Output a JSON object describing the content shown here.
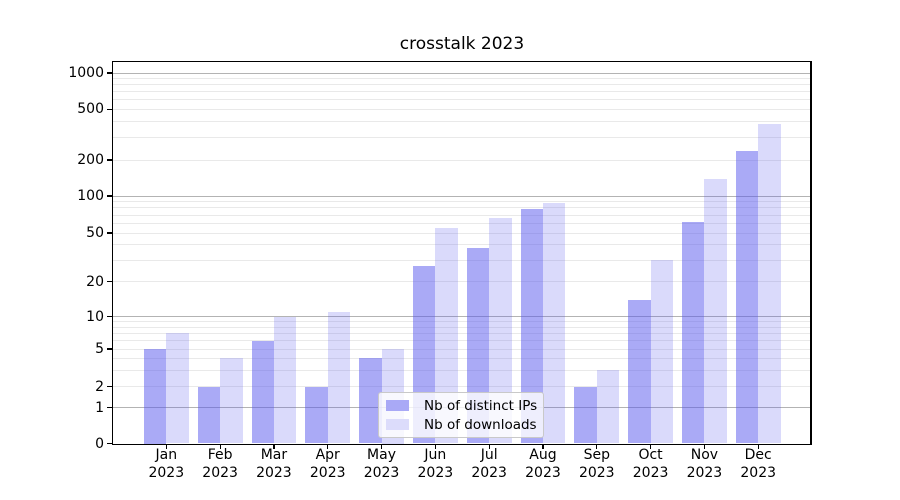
{
  "chart_data": {
    "type": "bar",
    "title": "crosstalk 2023",
    "categories": [
      "Jan 2023",
      "Feb 2023",
      "Mar 2023",
      "Apr 2023",
      "May 2023",
      "Jun 2023",
      "Jul 2023",
      "Aug 2023",
      "Sep 2023",
      "Oct 2023",
      "Nov 2023",
      "Dec 2023"
    ],
    "series": [
      {
        "name": "Nb of distinct IPs",
        "color": "#a9a9f6",
        "values": [
          5,
          2,
          6,
          2,
          4,
          27,
          38,
          78,
          2,
          14,
          62,
          235
        ]
      },
      {
        "name": "Nb of downloads",
        "color": "#dcdcfb",
        "values": [
          7,
          4,
          10,
          11,
          5,
          55,
          66,
          88,
          3,
          30,
          140,
          380
        ]
      }
    ],
    "xlabel": "",
    "ylabel": "",
    "yscale": "symlog",
    "yticks": [
      0,
      1,
      2,
      5,
      10,
      20,
      50,
      100,
      200,
      500,
      1000
    ],
    "ylim": [
      0,
      1200
    ],
    "grid": "horizontal, minor log gridlines light, decade gridlines darker",
    "legend_position": "inside plot, lower center-left",
    "bar_layout": "two touching bars per category, grouped side by side"
  },
  "colors": {
    "bar_distinct_ips": "#a9a9f6",
    "bar_downloads": "#dcdcfb",
    "grid_major": "#b3b3b3",
    "grid_minor": "#e9e9e9",
    "axis": "#000000",
    "background": "#ffffff",
    "legend_border": "#c9c9c9"
  }
}
